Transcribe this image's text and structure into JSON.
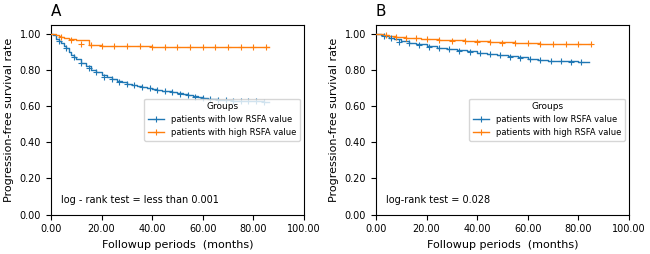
{
  "chart_data": [
    {
      "type": "step",
      "title": "A",
      "annotation": "log - rank test = less than 0.001",
      "xlabel": "Followup periods  (months)",
      "ylabel": "Progression-free survival rate",
      "xlim": [
        0,
        100
      ],
      "ylim": [
        0.0,
        1.05
      ],
      "xticks": [
        {
          "value": 0,
          "label": "0.00"
        },
        {
          "value": 20,
          "label": "20.00"
        },
        {
          "value": 40,
          "label": "40.00"
        },
        {
          "value": 60,
          "label": "60.00"
        },
        {
          "value": 80,
          "label": "80.00"
        },
        {
          "value": 100,
          "label": "100.00"
        }
      ],
      "yticks": [
        {
          "value": 0.0,
          "label": "0.00"
        },
        {
          "value": 0.2,
          "label": "0.20"
        },
        {
          "value": 0.4,
          "label": "0.40"
        },
        {
          "value": 0.6,
          "label": "0.60"
        },
        {
          "value": 0.8,
          "label": "0.80"
        },
        {
          "value": 1.0,
          "label": "1.00"
        }
      ],
      "grid": false,
      "legend": "center right",
      "legend_title": "Groups",
      "series": [
        {
          "name": "patients with low RSFA value",
          "marker": "plus",
          "x": [
            0,
            1,
            2,
            3,
            4,
            5,
            6,
            7,
            8,
            9,
            10,
            12,
            14,
            16,
            18,
            20,
            22,
            24,
            26,
            28,
            30,
            32,
            34,
            36,
            38,
            40,
            42,
            44,
            46,
            48,
            50,
            52,
            54,
            56,
            58,
            60,
            62,
            64,
            66,
            68,
            70,
            72,
            74,
            76,
            78,
            80,
            82,
            84,
            86
          ],
          "values": [
            1.0,
            0.99,
            0.97,
            0.96,
            0.95,
            0.93,
            0.92,
            0.9,
            0.88,
            0.87,
            0.86,
            0.84,
            0.82,
            0.8,
            0.79,
            0.77,
            0.76,
            0.75,
            0.74,
            0.73,
            0.72,
            0.715,
            0.71,
            0.705,
            0.7,
            0.695,
            0.69,
            0.685,
            0.68,
            0.675,
            0.67,
            0.665,
            0.66,
            0.655,
            0.65,
            0.645,
            0.64,
            0.638,
            0.635,
            0.633,
            0.631,
            0.63,
            0.629,
            0.628,
            0.627,
            0.626,
            0.625,
            0.624,
            0.623
          ],
          "censor_x": [
            3,
            6,
            9,
            12,
            15,
            18,
            21,
            24,
            27,
            30,
            33,
            36,
            39,
            42,
            45,
            48,
            51,
            54,
            57,
            60,
            63,
            66,
            69,
            72,
            75,
            78,
            81,
            84
          ],
          "censor_values": [
            0.96,
            0.92,
            0.87,
            0.84,
            0.81,
            0.79,
            0.76,
            0.75,
            0.735,
            0.72,
            0.715,
            0.703,
            0.699,
            0.69,
            0.685,
            0.675,
            0.668,
            0.661,
            0.652,
            0.643,
            0.638,
            0.635,
            0.632,
            0.63,
            0.629,
            0.627,
            0.625,
            0.624
          ]
        },
        {
          "name": "patients with high RSFA value",
          "marker": "plus",
          "x": [
            0,
            1,
            2,
            3,
            4,
            5,
            7,
            10,
            15,
            20,
            30,
            40,
            50,
            60,
            70,
            80,
            86
          ],
          "values": [
            1.0,
            1.0,
            0.99,
            0.985,
            0.98,
            0.975,
            0.97,
            0.965,
            0.935,
            0.932,
            0.93,
            0.928,
            0.926,
            0.925,
            0.924,
            0.923,
            0.923
          ],
          "censor_x": [
            4,
            8,
            12,
            16,
            20,
            25,
            30,
            35,
            40,
            45,
            50,
            55,
            60,
            65,
            70,
            75,
            80,
            85
          ],
          "censor_values": [
            0.98,
            0.967,
            0.943,
            0.934,
            0.932,
            0.931,
            0.93,
            0.929,
            0.928,
            0.927,
            0.926,
            0.925,
            0.925,
            0.924,
            0.924,
            0.923,
            0.923,
            0.923
          ]
        }
      ]
    },
    {
      "type": "step",
      "title": "B",
      "annotation": "log-rank test = 0.028",
      "xlabel": "Followup periods  (months)",
      "ylabel": "Progression-free survival rate",
      "xlim": [
        0,
        100
      ],
      "ylim": [
        0.0,
        1.05
      ],
      "xticks": [
        {
          "value": 0,
          "label": "0.00"
        },
        {
          "value": 20,
          "label": "20.00"
        },
        {
          "value": 40,
          "label": "40.00"
        },
        {
          "value": 60,
          "label": "60.00"
        },
        {
          "value": 80,
          "label": "80.00"
        },
        {
          "value": 100,
          "label": "100.00"
        }
      ],
      "yticks": [
        {
          "value": 0.0,
          "label": "0.00"
        },
        {
          "value": 0.2,
          "label": "0.20"
        },
        {
          "value": 0.4,
          "label": "0.40"
        },
        {
          "value": 0.6,
          "label": "0.60"
        },
        {
          "value": 0.8,
          "label": "0.80"
        },
        {
          "value": 1.0,
          "label": "1.00"
        }
      ],
      "grid": false,
      "legend": "center right",
      "legend_title": "Groups",
      "series": [
        {
          "name": "patients with low RSFA value",
          "marker": "plus",
          "x": [
            0,
            1,
            2,
            3,
            5,
            7,
            10,
            13,
            16,
            20,
            24,
            28,
            32,
            36,
            40,
            44,
            48,
            52,
            56,
            60,
            62,
            64,
            66,
            68,
            72,
            76,
            80,
            84
          ],
          "values": [
            1.0,
            0.995,
            0.99,
            0.985,
            0.978,
            0.97,
            0.96,
            0.95,
            0.94,
            0.93,
            0.922,
            0.915,
            0.908,
            0.901,
            0.895,
            0.888,
            0.882,
            0.875,
            0.868,
            0.862,
            0.858,
            0.855,
            0.852,
            0.85,
            0.848,
            0.846,
            0.845,
            0.844
          ],
          "censor_x": [
            3,
            6,
            9,
            13,
            17,
            21,
            25,
            29,
            33,
            37,
            41,
            45,
            49,
            53,
            57,
            61,
            65,
            69,
            73,
            77,
            81
          ],
          "censor_values": [
            0.987,
            0.974,
            0.955,
            0.948,
            0.937,
            0.927,
            0.918,
            0.912,
            0.905,
            0.898,
            0.892,
            0.885,
            0.879,
            0.872,
            0.865,
            0.859,
            0.854,
            0.85,
            0.847,
            0.845,
            0.844
          ]
        },
        {
          "name": "patients with high RSFA value",
          "marker": "plus",
          "x": [
            0,
            1,
            2,
            3,
            5,
            8,
            12,
            18,
            25,
            35,
            45,
            55,
            65,
            75,
            85
          ],
          "values": [
            1.0,
            0.998,
            0.996,
            0.993,
            0.988,
            0.983,
            0.978,
            0.97,
            0.963,
            0.958,
            0.952,
            0.948,
            0.945,
            0.943,
            0.941
          ],
          "censor_x": [
            4,
            8,
            12,
            16,
            20,
            25,
            30,
            35,
            40,
            45,
            50,
            55,
            60,
            65,
            70,
            75,
            80,
            85
          ],
          "censor_values": [
            0.99,
            0.983,
            0.978,
            0.973,
            0.968,
            0.963,
            0.96,
            0.958,
            0.955,
            0.952,
            0.95,
            0.948,
            0.946,
            0.945,
            0.944,
            0.943,
            0.942,
            0.941
          ]
        }
      ]
    }
  ]
}
